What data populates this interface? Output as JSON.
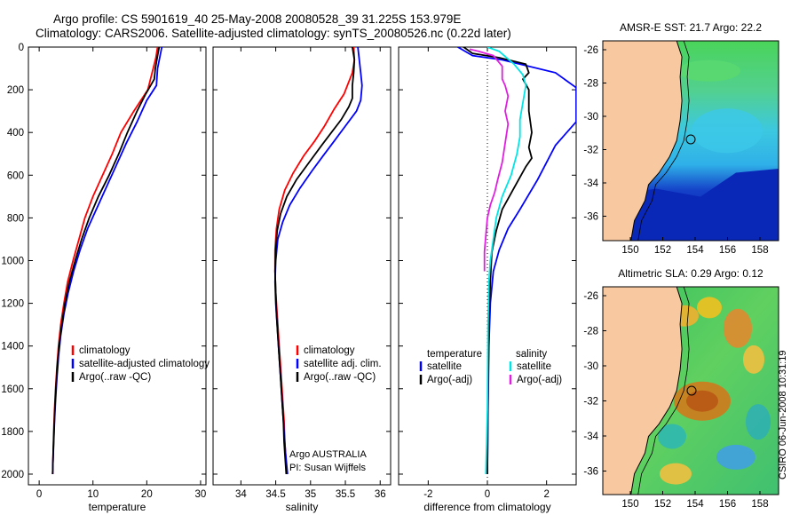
{
  "header": {
    "title_line1": "Argo profile: CS 5901619_40 25-May-2008 20080528_39 31.225S 153.979E",
    "title_line2": "Climatology: CARS2006. Satellite-adjusted climatology: synTS_20080526.nc (0.22d later)"
  },
  "credit": {
    "agency_line1": "Argo AUSTRALIA",
    "agency_line2": "PI: Susan Wijffels",
    "timestamp": "CSIRO 06-Jun-2008 10:31:19"
  },
  "colors": {
    "climatology": "#ff0000",
    "satellite": "#0000ff",
    "argo": "#000000",
    "salinity_satellite": "#00e5e5",
    "salinity_argo": "#e020e0",
    "land": "#f8c9a0"
  },
  "chart_data": [
    {
      "type": "line",
      "name": "temperature-profile",
      "xlabel": "temperature",
      "ylabel": "",
      "xlim": [
        -2,
        31
      ],
      "ylim": [
        2050,
        0
      ],
      "xticks": [
        0,
        10,
        20,
        30
      ],
      "yticks": [
        0,
        200,
        400,
        600,
        800,
        1000,
        1200,
        1400,
        1600,
        1800,
        2000
      ],
      "legend": [
        "climatology",
        "satellite-adjusted climatology",
        "Argo(..raw -QC)"
      ],
      "series": [
        {
          "name": "climatology",
          "color": "#ff0000",
          "points": [
            [
              22.0,
              0
            ],
            [
              21.7,
              50
            ],
            [
              21.2,
              100
            ],
            [
              20.2,
              200
            ],
            [
              17.6,
              300
            ],
            [
              15.2,
              400
            ],
            [
              13.6,
              500
            ],
            [
              11.8,
              600
            ],
            [
              10.0,
              700
            ],
            [
              8.5,
              800
            ],
            [
              7.4,
              900
            ],
            [
              6.3,
              1000
            ],
            [
              5.3,
              1100
            ],
            [
              4.6,
              1200
            ],
            [
              4.0,
              1300
            ],
            [
              3.6,
              1400
            ],
            [
              3.3,
              1500
            ],
            [
              3.05,
              1600
            ],
            [
              2.85,
              1700
            ],
            [
              2.7,
              1800
            ],
            [
              2.6,
              1900
            ],
            [
              2.5,
              2000
            ]
          ]
        },
        {
          "name": "satellite-adjusted climatology",
          "color": "#0000ff",
          "points": [
            [
              22.8,
              0
            ],
            [
              22.4,
              50
            ],
            [
              22.0,
              100
            ],
            [
              21.8,
              180
            ],
            [
              20.0,
              250
            ],
            [
              18.2,
              350
            ],
            [
              16.2,
              450
            ],
            [
              14.4,
              550
            ],
            [
              12.6,
              650
            ],
            [
              10.8,
              750
            ],
            [
              9.0,
              850
            ],
            [
              7.6,
              950
            ],
            [
              6.4,
              1050
            ],
            [
              5.4,
              1150
            ],
            [
              4.6,
              1250
            ],
            [
              4.0,
              1350
            ],
            [
              3.6,
              1450
            ],
            [
              3.3,
              1550
            ],
            [
              3.05,
              1650
            ],
            [
              2.85,
              1750
            ],
            [
              2.7,
              1850
            ],
            [
              2.55,
              1950
            ],
            [
              2.5,
              2000
            ]
          ]
        },
        {
          "name": "Argo(..raw -QC)",
          "color": "#000000",
          "points": [
            [
              22.3,
              0
            ],
            [
              22.0,
              40
            ],
            [
              21.6,
              100
            ],
            [
              21.4,
              150
            ],
            [
              19.8,
              220
            ],
            [
              18.2,
              300
            ],
            [
              16.4,
              400
            ],
            [
              14.8,
              500
            ],
            [
              13.0,
              600
            ],
            [
              11.0,
              700
            ],
            [
              9.3,
              800
            ],
            [
              7.9,
              900
            ],
            [
              6.7,
              1000
            ],
            [
              5.6,
              1100
            ],
            [
              4.8,
              1200
            ],
            [
              4.2,
              1300
            ],
            [
              3.7,
              1400
            ],
            [
              3.35,
              1500
            ],
            [
              3.1,
              1600
            ],
            [
              2.9,
              1700
            ],
            [
              2.75,
              1800
            ],
            [
              2.6,
              1900
            ],
            [
              2.5,
              2000
            ]
          ]
        }
      ]
    },
    {
      "type": "line",
      "name": "salinity-profile",
      "xlabel": "salinity",
      "ylabel": "",
      "xlim": [
        33.6,
        36.15
      ],
      "ylim": [
        2050,
        0
      ],
      "xticks": [
        34,
        34.5,
        35,
        35.5,
        36
      ],
      "legend": [
        "climatology",
        "satellite adj. clim.",
        "Argo(..raw -QC)"
      ],
      "series": [
        {
          "name": "climatology",
          "color": "#ff0000",
          "points": [
            [
              35.62,
              0
            ],
            [
              35.63,
              60
            ],
            [
              35.6,
              120
            ],
            [
              35.48,
              220
            ],
            [
              35.34,
              290
            ],
            [
              35.2,
              370
            ],
            [
              35.06,
              440
            ],
            [
              34.9,
              510
            ],
            [
              34.75,
              590
            ],
            [
              34.63,
              670
            ],
            [
              34.55,
              760
            ],
            [
              34.51,
              850
            ],
            [
              34.49,
              950
            ],
            [
              34.49,
              1050
            ],
            [
              34.5,
              1150
            ],
            [
              34.52,
              1250
            ],
            [
              34.54,
              1350
            ],
            [
              34.56,
              1450
            ],
            [
              34.58,
              1550
            ],
            [
              34.6,
              1650
            ],
            [
              34.62,
              1750
            ],
            [
              34.63,
              1850
            ],
            [
              34.65,
              1950
            ],
            [
              34.66,
              2000
            ]
          ]
        },
        {
          "name": "satellite adj. clim.",
          "color": "#0000ff",
          "points": [
            [
              35.68,
              0
            ],
            [
              35.7,
              60
            ],
            [
              35.72,
              120
            ],
            [
              35.74,
              180
            ],
            [
              35.72,
              250
            ],
            [
              35.66,
              300
            ],
            [
              35.5,
              370
            ],
            [
              35.34,
              440
            ],
            [
              35.18,
              510
            ],
            [
              35.02,
              580
            ],
            [
              34.85,
              660
            ],
            [
              34.7,
              740
            ],
            [
              34.6,
              820
            ],
            [
              34.53,
              900
            ],
            [
              34.5,
              1000
            ],
            [
              34.49,
              1100
            ],
            [
              34.5,
              1200
            ],
            [
              34.52,
              1300
            ],
            [
              34.54,
              1400
            ],
            [
              34.56,
              1500
            ],
            [
              34.58,
              1600
            ],
            [
              34.6,
              1700
            ],
            [
              34.62,
              1800
            ],
            [
              34.64,
              1900
            ],
            [
              34.67,
              2000
            ]
          ]
        },
        {
          "name": "Argo(..raw -QC)",
          "color": "#000000",
          "points": [
            [
              35.6,
              0
            ],
            [
              35.63,
              60
            ],
            [
              35.62,
              120
            ],
            [
              35.6,
              180
            ],
            [
              35.6,
              240
            ],
            [
              35.55,
              280
            ],
            [
              35.44,
              340
            ],
            [
              35.3,
              400
            ],
            [
              35.16,
              460
            ],
            [
              34.98,
              540
            ],
            [
              34.8,
              620
            ],
            [
              34.66,
              700
            ],
            [
              34.57,
              780
            ],
            [
              34.52,
              860
            ],
            [
              34.5,
              950
            ],
            [
              34.49,
              1050
            ],
            [
              34.5,
              1150
            ],
            [
              34.51,
              1250
            ],
            [
              34.53,
              1350
            ],
            [
              34.55,
              1450
            ],
            [
              34.57,
              1550
            ],
            [
              34.59,
              1650
            ],
            [
              34.61,
              1750
            ],
            [
              34.62,
              1850
            ],
            [
              34.64,
              1950
            ],
            [
              34.65,
              2000
            ]
          ]
        }
      ]
    },
    {
      "type": "line",
      "name": "difference-profile",
      "xlabel": "difference from climatology",
      "ylabel": "",
      "xlim": [
        -3.0,
        3.0
      ],
      "ylim": [
        2050,
        0
      ],
      "xticks": [
        -2,
        0,
        2
      ],
      "legend_temperature_title": "temperature",
      "legend_salinity_title": "salinity",
      "legend": [
        "satellite",
        "Argo(-adj)",
        "satellite",
        "Argo(-adj)"
      ],
      "series": [
        {
          "name": "satellite",
          "group": "temperature",
          "color": "#0000ff",
          "points": [
            [
              -1.0,
              0
            ],
            [
              -0.5,
              40
            ],
            [
              0.5,
              60
            ],
            [
              2.3,
              120
            ],
            [
              3.0,
              190
            ],
            [
              3.0,
              300
            ],
            [
              3.0,
              350
            ],
            [
              2.3,
              460
            ],
            [
              1.7,
              620
            ],
            [
              1.1,
              760
            ],
            [
              0.7,
              850
            ],
            [
              0.4,
              950
            ],
            [
              0.2,
              1050
            ],
            [
              0.1,
              1200
            ],
            [
              0.05,
              1400
            ],
            [
              0.02,
              1700
            ],
            [
              0.0,
              2000
            ]
          ]
        },
        {
          "name": "Argo(-adj)",
          "group": "temperature",
          "color": "#000000",
          "points": [
            [
              -0.8,
              0
            ],
            [
              -0.5,
              30
            ],
            [
              0.4,
              50
            ],
            [
              1.3,
              80
            ],
            [
              1.4,
              120
            ],
            [
              1.2,
              150
            ],
            [
              1.4,
              200
            ],
            [
              1.4,
              300
            ],
            [
              1.5,
              400
            ],
            [
              1.4,
              470
            ],
            [
              1.5,
              520
            ],
            [
              1.3,
              560
            ],
            [
              0.9,
              660
            ],
            [
              0.5,
              760
            ],
            [
              0.3,
              860
            ],
            [
              0.15,
              960
            ],
            [
              0.1,
              1100
            ],
            [
              0.05,
              1300
            ],
            [
              0.02,
              1600
            ],
            [
              0.0,
              2000
            ]
          ]
        },
        {
          "name": "satellite",
          "group": "salinity",
          "color": "#00e5e5",
          "points": [
            [
              0.0,
              0
            ],
            [
              0.4,
              20
            ],
            [
              0.9,
              80
            ],
            [
              1.2,
              130
            ],
            [
              1.3,
              180
            ],
            [
              1.2,
              260
            ],
            [
              1.1,
              340
            ],
            [
              1.1,
              420
            ],
            [
              1.0,
              500
            ],
            [
              0.8,
              600
            ],
            [
              0.5,
              700
            ],
            [
              0.3,
              800
            ],
            [
              0.2,
              900
            ],
            [
              0.1,
              1000
            ],
            [
              0.05,
              1100
            ],
            [
              0.02,
              1300
            ],
            [
              0.0,
              1700
            ],
            [
              -0.05,
              2000
            ]
          ]
        },
        {
          "name": "Argo(-adj)",
          "group": "salinity",
          "color": "#e020e0",
          "points": [
            [
              -0.6,
              10
            ],
            [
              -0.3,
              20
            ],
            [
              0.2,
              40
            ],
            [
              0.5,
              90
            ],
            [
              0.5,
              150
            ],
            [
              0.6,
              180
            ],
            [
              0.7,
              230
            ],
            [
              0.6,
              300
            ],
            [
              0.7,
              360
            ],
            [
              0.6,
              450
            ],
            [
              0.5,
              540
            ],
            [
              0.35,
              620
            ],
            [
              0.25,
              680
            ],
            [
              0.1,
              740
            ],
            [
              0.0,
              800
            ],
            [
              -0.05,
              880
            ],
            [
              -0.1,
              960
            ],
            [
              -0.1,
              1050
            ]
          ]
        }
      ]
    }
  ],
  "maps": [
    {
      "title": "AMSR-E SST: 21.7 Argo: 22.2",
      "xticks": [
        "150",
        "152",
        "154",
        "156",
        "158"
      ],
      "yticks": [
        "-26",
        "-28",
        "-30",
        "-32",
        "-34",
        "-36"
      ]
    },
    {
      "title": "Altimetric SLA: 0.29 Argo: 0.12",
      "xticks": [
        "150",
        "152",
        "154",
        "156",
        "158"
      ],
      "yticks": [
        "-26",
        "-28",
        "-30",
        "-32",
        "-34",
        "-36"
      ]
    }
  ]
}
